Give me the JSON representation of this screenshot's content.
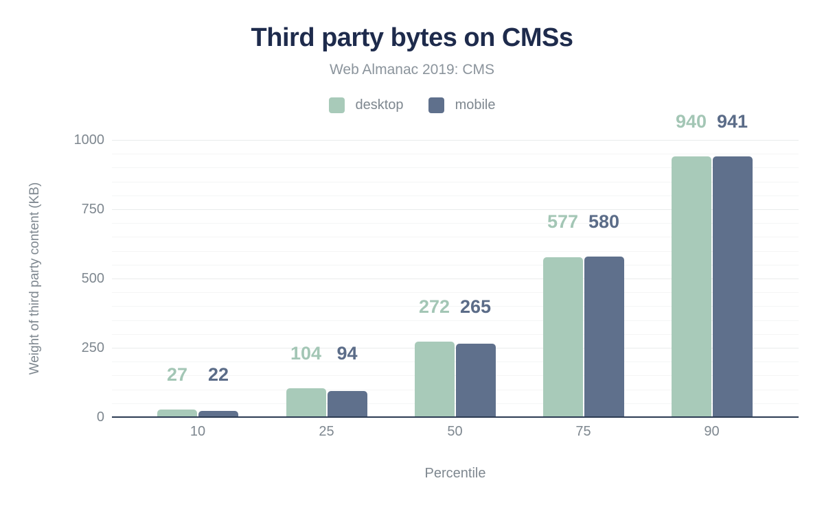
{
  "chart_data": {
    "type": "bar",
    "title": "Third party bytes on CMSs",
    "subtitle": "Web Almanac 2019: CMS",
    "xlabel": "Percentile",
    "ylabel": "Weight of third party content (KB)",
    "categories": [
      "10",
      "25",
      "50",
      "75",
      "90"
    ],
    "series": [
      {
        "name": "desktop",
        "color": "#a8cab9",
        "label_color": "#a3c6b5",
        "values": [
          27,
          104,
          272,
          577,
          940
        ]
      },
      {
        "name": "mobile",
        "color": "#5f708c",
        "label_color": "#5b6c88",
        "values": [
          22,
          94,
          265,
          580,
          941
        ]
      }
    ],
    "ylim": [
      0,
      1000
    ],
    "y_ticks": [
      0,
      250,
      500,
      750,
      1000
    ],
    "grid": "horizontal, minor every 50 KB, major every 250 KB",
    "legend_position": "top-center"
  },
  "colors": {
    "title": "#1e2b4c",
    "subtitle": "#8b949c",
    "axis-text": "#7e878f",
    "baseline": "#2b3a52",
    "grid-minor": "#f4f5f5",
    "grid-major": "#e9ebec",
    "background": "#ffffff"
  }
}
